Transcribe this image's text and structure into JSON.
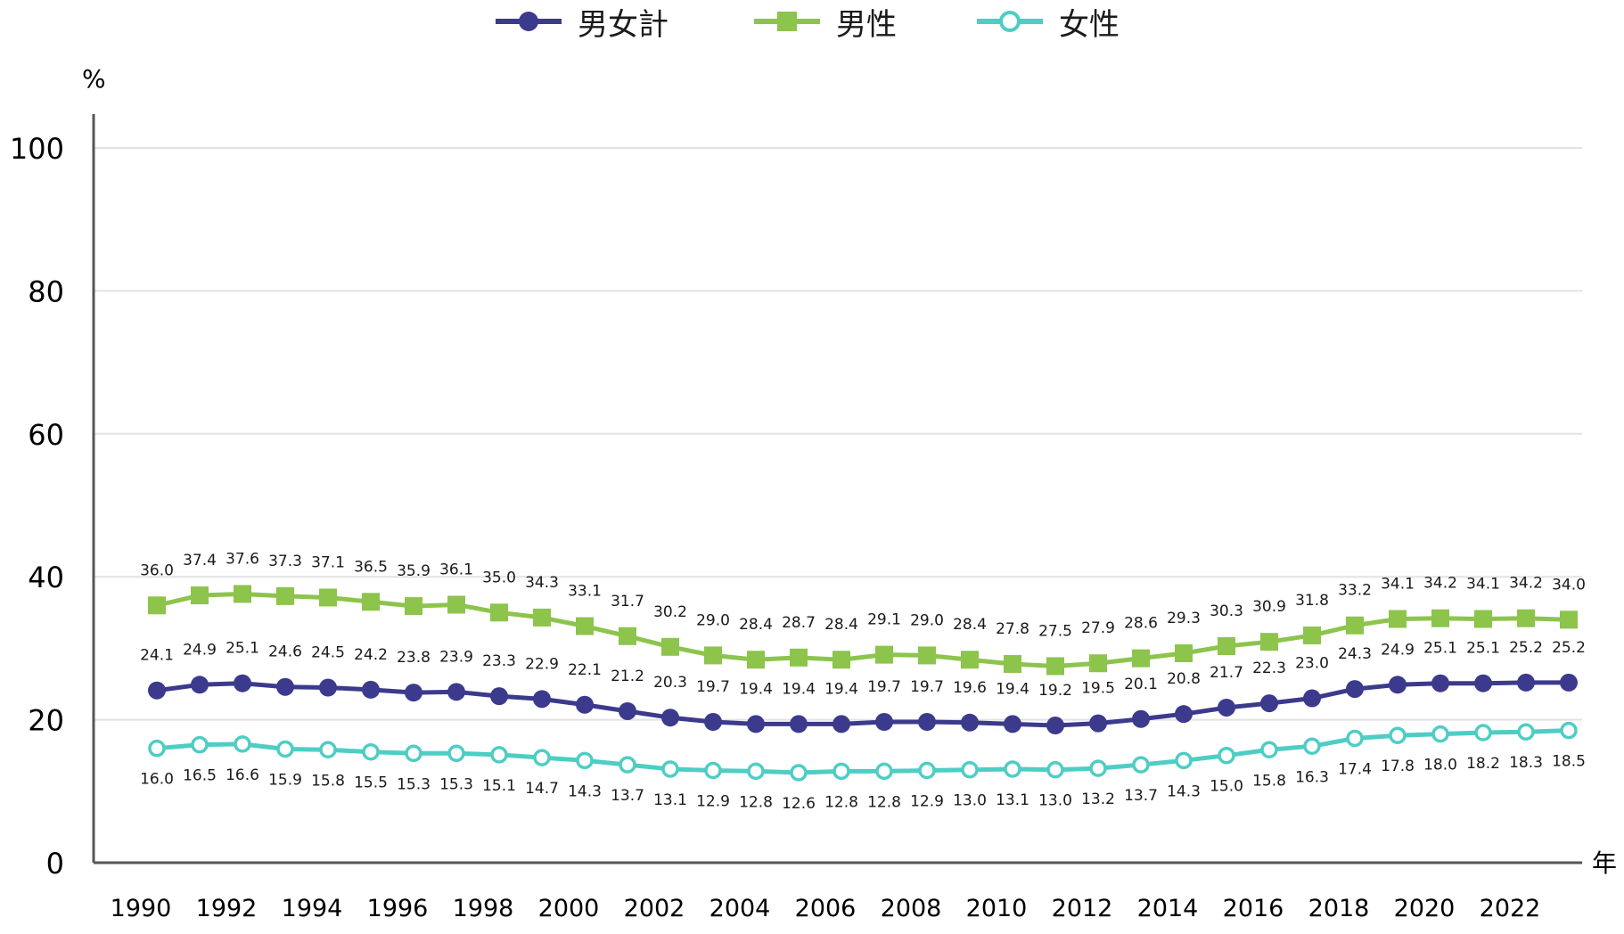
{
  "chart_data": {
    "type": "line",
    "title": "",
    "ylabel": "%",
    "xlabel": "年",
    "ylim": [
      0,
      100
    ],
    "yticks": [
      0,
      20,
      40,
      60,
      80,
      100
    ],
    "x": [
      1990,
      1991,
      1992,
      1993,
      1994,
      1995,
      1996,
      1997,
      1998,
      1999,
      2000,
      2001,
      2002,
      2003,
      2004,
      2005,
      2006,
      2007,
      2008,
      2009,
      2010,
      2011,
      2012,
      2013,
      2014,
      2015,
      2016,
      2017,
      2018,
      2019,
      2020,
      2021,
      2022,
      2023
    ],
    "xticks": [
      "1990",
      "1992",
      "1994",
      "1996",
      "1998",
      "2000",
      "2002",
      "2004",
      "2006",
      "2008",
      "2010",
      "2012",
      "2014",
      "2016",
      "2018",
      "2020",
      "2022"
    ],
    "grid": true,
    "legend_position": "top-center",
    "series": [
      {
        "name": "男女計",
        "color": "#3c3a8c",
        "marker": "circle",
        "values": [
          24.1,
          24.9,
          25.1,
          24.6,
          24.5,
          24.2,
          23.8,
          23.9,
          23.3,
          22.9,
          22.1,
          21.2,
          20.3,
          19.7,
          19.4,
          19.4,
          19.4,
          19.7,
          19.7,
          19.6,
          19.4,
          19.2,
          19.5,
          20.1,
          20.8,
          21.7,
          22.3,
          23.0,
          24.3,
          24.9,
          25.1,
          25.1,
          25.2,
          25.2
        ]
      },
      {
        "name": "男性",
        "color": "#8cc44c",
        "marker": "square",
        "values": [
          36.0,
          37.4,
          37.6,
          37.3,
          37.1,
          36.5,
          35.9,
          36.1,
          35.0,
          34.3,
          33.1,
          31.7,
          30.2,
          29.0,
          28.4,
          28.7,
          28.4,
          29.1,
          29.0,
          28.4,
          27.8,
          27.5,
          27.9,
          28.6,
          29.3,
          30.3,
          30.9,
          31.8,
          33.2,
          34.1,
          34.2,
          34.1,
          34.2,
          34.0
        ]
      },
      {
        "name": "女性",
        "color": "#4ecdc4",
        "marker": "hollow-circle",
        "values": [
          16.0,
          16.5,
          16.6,
          15.9,
          15.8,
          15.5,
          15.3,
          15.3,
          15.1,
          14.7,
          14.3,
          13.7,
          13.1,
          12.9,
          12.8,
          12.6,
          12.8,
          12.8,
          12.9,
          13.0,
          13.1,
          13.0,
          13.2,
          13.7,
          14.3,
          15.0,
          15.8,
          16.3,
          17.4,
          17.8,
          18.0,
          18.2,
          18.3,
          18.5
        ]
      }
    ]
  }
}
